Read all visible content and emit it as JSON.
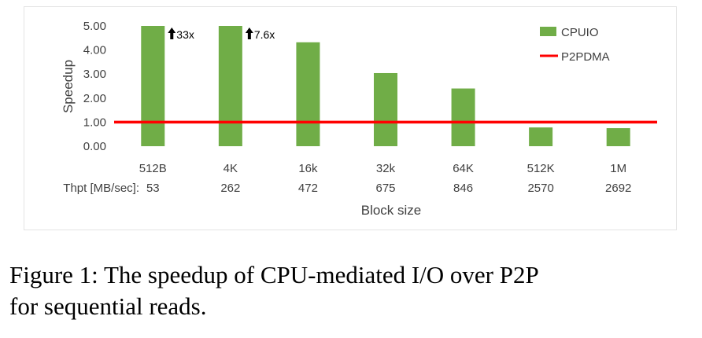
{
  "chart_data": {
    "type": "bar",
    "categories": [
      "512B",
      "4K",
      "16k",
      "32k",
      "64K",
      "512K",
      "1M"
    ],
    "series": [
      {
        "name": "CPUIO",
        "values": [
          5.0,
          5.0,
          4.32,
          3.04,
          2.4,
          0.78,
          0.75
        ],
        "color": "#70ad47"
      }
    ],
    "reference_line": {
      "name": "P2PDMA",
      "value": 1.0,
      "color": "#ff0000"
    },
    "annotations": [
      {
        "category": "512B",
        "text": "33x",
        "icon": "arrow-up-icon"
      },
      {
        "category": "4K",
        "text": "7.6x",
        "icon": "arrow-up-icon"
      }
    ],
    "yticks": [
      "0.00",
      "1.00",
      "2.00",
      "3.00",
      "4.00",
      "5.00"
    ],
    "ylim": [
      0,
      5
    ],
    "ylabel": "Speedup",
    "xlabel": "Block size",
    "thpt_row": {
      "label": "Thpt [MB/sec]:",
      "values": [
        "53",
        "262",
        "472",
        "675",
        "846",
        "2570",
        "2692"
      ]
    },
    "legend_placement": "top-right",
    "grid": false
  },
  "caption": {
    "prefix": "Figure 1:  The speedup of CPU-mediated I/O over ",
    "smallcaps": "P2P",
    "suffix": "for sequential reads."
  }
}
